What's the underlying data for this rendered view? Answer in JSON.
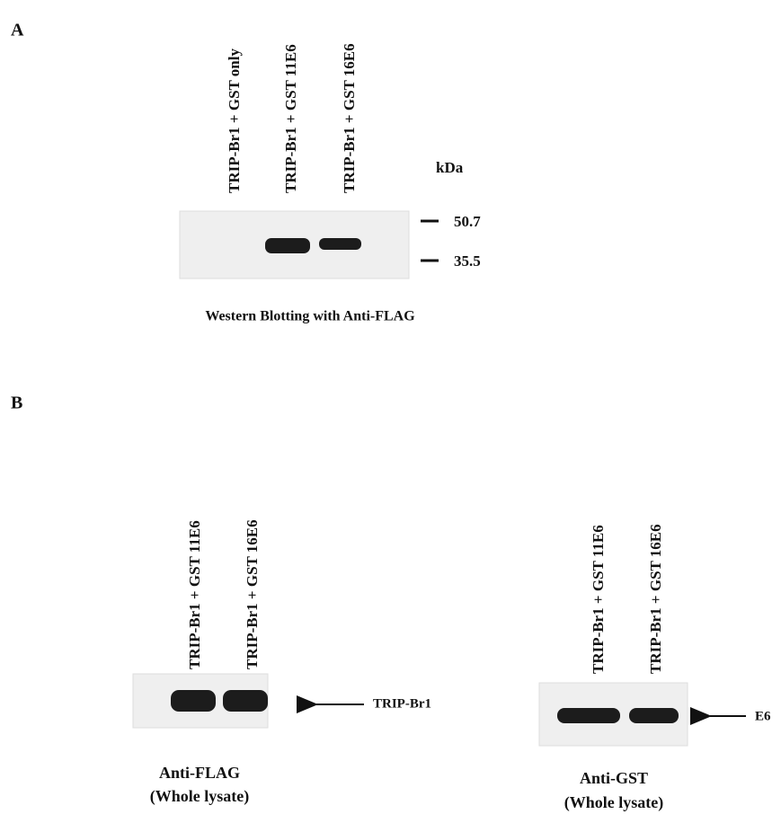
{
  "panel_a": {
    "label": "A",
    "lanes": [
      "TRIP-Br1 + GST only",
      "TRIP-Br1 + GST 11E6",
      "TRIP-Br1 + GST 16E6"
    ],
    "unit": "kDa",
    "markers": [
      "50.7",
      "35.5"
    ],
    "caption": "Western Blotting with Anti-FLAG"
  },
  "panel_b": {
    "label": "B",
    "blots": [
      {
        "lanes": [
          "TRIP-Br1 + GST 11E6",
          "TRIP-Br1 + GST 16E6"
        ],
        "band_label": "TRIP-Br1",
        "caption": [
          "Anti-FLAG",
          "(Whole lysate)"
        ]
      },
      {
        "lanes": [
          "TRIP-Br1 + GST 11E6",
          "TRIP-Br1 + GST 16E6"
        ],
        "band_label": "E6",
        "caption": [
          "Anti-GST",
          "(Whole lysate)"
        ]
      }
    ]
  }
}
